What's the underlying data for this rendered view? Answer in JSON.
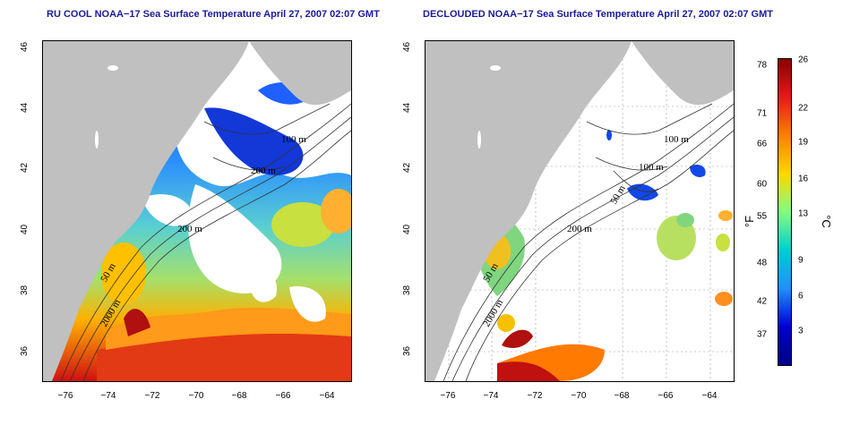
{
  "titles": {
    "left": "RU COOL NOAA−17 Sea Surface Temperature April 27, 2007 02:07 GMT",
    "right": "DECLOUDED NOAA−17 Sea Surface Temperature April 27, 2007 02:07 GMT"
  },
  "axes": {
    "x_ticks": [
      "−76",
      "−74",
      "−72",
      "−70",
      "−68",
      "−66",
      "−64"
    ],
    "y_ticks": [
      "46",
      "44",
      "42",
      "40",
      "38",
      "36"
    ]
  },
  "contour_labels": {
    "left": [
      "100 m",
      "200 m",
      "200 m",
      "50 m",
      "2000 m"
    ],
    "right": [
      "100 m",
      "100 m",
      "50 m",
      "200 m",
      "50 m",
      "2000 m"
    ]
  },
  "colorbar": {
    "fahrenheit_ticks": [
      "78",
      "71",
      "66",
      "60",
      "55",
      "48",
      "42",
      "37"
    ],
    "celsius_ticks": [
      "26",
      "22",
      "19",
      "16",
      "13",
      "9",
      "6",
      "3"
    ],
    "f_unit": "°F",
    "c_unit": "°C",
    "colors": [
      "#8b0000",
      "#e31a1c",
      "#ff7f00",
      "#ffd700",
      "#7fff7f",
      "#00ced1",
      "#1e90ff",
      "#0000cd",
      "#00008b"
    ]
  },
  "colors": {
    "land": "#c0c0c0",
    "cloud": "#ffffff",
    "title": "#1a1a9a"
  }
}
